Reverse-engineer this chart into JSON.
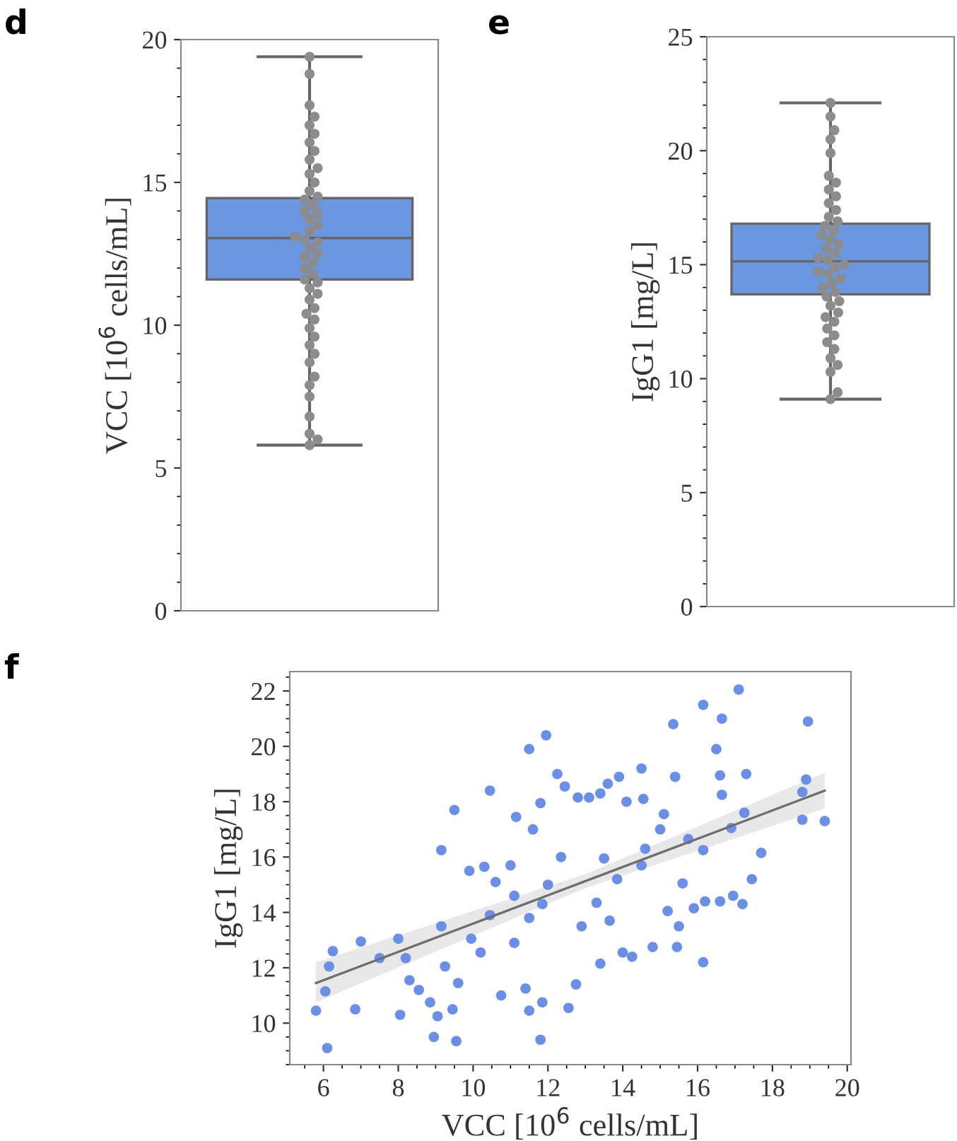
{
  "chart_data": [
    {
      "type": "box",
      "annotations": [
        "d"
      ],
      "ylabel": "VCC [10$^{6}$ cells/mL]",
      "categories": [
        null
      ],
      "ylim": [
        0,
        20
      ],
      "yticks": [
        0,
        5,
        10,
        15,
        20
      ],
      "tick_labels": "y",
      "grid": false,
      "series": [
        {
          "type": "box",
          "color": "#6a97e0",
          "boxes": [
            {
              "low": 5.8,
              "q1": 11.6,
              "median": 13.05,
              "q3": 14.45,
              "high": 19.4
            }
          ]
        },
        {
          "type": "scatter",
          "color": "#8c8c8c",
          "marker": "circle",
          "x": [
            null,
            null,
            null,
            null,
            null,
            null,
            null,
            null,
            null,
            null,
            null,
            null,
            null,
            null,
            null,
            null,
            null,
            null,
            null,
            null,
            null,
            null,
            null,
            null,
            null,
            null,
            null,
            null,
            null,
            null,
            null,
            null,
            null,
            null,
            null,
            null,
            null,
            null,
            null,
            null,
            null,
            null,
            null,
            null,
            null,
            null,
            null,
            null,
            null,
            null
          ],
          "values": [
            5.8,
            6.0,
            6.2,
            6.8,
            7.5,
            7.9,
            8.2,
            8.7,
            9.0,
            9.3,
            9.6,
            9.9,
            10.2,
            10.4,
            10.6,
            10.9,
            11.1,
            11.3,
            11.5,
            11.6,
            11.8,
            12.0,
            12.2,
            12.4,
            12.5,
            12.7,
            12.9,
            13.0,
            13.1,
            13.3,
            13.5,
            13.7,
            13.9,
            14.0,
            14.2,
            14.4,
            14.5,
            14.7,
            15.0,
            15.3,
            15.5,
            15.8,
            16.1,
            16.4,
            16.7,
            17.0,
            17.3,
            17.7,
            18.8,
            19.4
          ]
        }
      ]
    },
    {
      "type": "box",
      "annotations": [
        "e"
      ],
      "ylabel": "IgG1 [mg/L]",
      "categories": [
        null
      ],
      "ylim": [
        0,
        25
      ],
      "yticks": [
        0,
        5,
        10,
        15,
        20,
        25
      ],
      "tick_labels": "y",
      "grid": false,
      "series": [
        {
          "type": "box",
          "color": "#6a97e0",
          "boxes": [
            {
              "low": 9.1,
              "q1": 13.7,
              "median": 15.15,
              "q3": 16.8,
              "high": 22.1
            }
          ]
        },
        {
          "type": "scatter",
          "color": "#8c8c8c",
          "marker": "circle",
          "x": [
            null,
            null,
            null,
            null,
            null,
            null,
            null,
            null,
            null,
            null,
            null,
            null,
            null,
            null,
            null,
            null,
            null,
            null,
            null,
            null,
            null,
            null,
            null,
            null,
            null,
            null,
            null,
            null,
            null,
            null,
            null,
            null,
            null,
            null,
            null,
            null,
            null,
            null,
            null,
            null,
            null,
            null,
            null,
            null,
            null
          ],
          "values": [
            9.1,
            9.4,
            10.3,
            10.6,
            10.9,
            11.3,
            11.6,
            11.9,
            12.2,
            12.5,
            12.7,
            12.9,
            13.2,
            13.4,
            13.6,
            13.8,
            14.0,
            14.2,
            14.4,
            14.6,
            14.7,
            14.9,
            15.0,
            15.2,
            15.3,
            15.5,
            15.7,
            15.9,
            16.1,
            16.3,
            16.5,
            16.7,
            16.9,
            17.1,
            17.4,
            17.7,
            18.0,
            18.3,
            18.6,
            18.9,
            19.9,
            20.5,
            20.9,
            21.5,
            22.1
          ]
        }
      ]
    },
    {
      "type": "scatter",
      "annotations": [
        "f"
      ],
      "xlabel": "VCC [10$^{6}$ cells/mL]",
      "ylabel": "IgG1 [mg/L]",
      "xlim": [
        5.1,
        20.1
      ],
      "xticks": [
        6,
        8,
        10,
        12,
        14,
        16,
        18,
        20
      ],
      "ylim": [
        8.5,
        22.7
      ],
      "yticks": [
        10,
        12,
        14,
        16,
        18,
        20,
        22
      ],
      "grid": false,
      "series": [
        {
          "type": "scatter",
          "color": "#6b8fe6",
          "marker": "circle",
          "x": [
            5.8,
            6.1,
            6.05,
            6.15,
            6.25,
            6.85,
            7.0,
            7.5,
            8.0,
            8.05,
            8.2,
            8.3,
            8.55,
            8.85,
            8.95,
            9.05,
            9.15,
            9.15,
            9.25,
            9.45,
            9.5,
            9.55,
            9.6,
            9.9,
            9.95,
            10.3,
            10.2,
            10.45,
            10.6,
            10.75,
            11.0,
            11.1,
            11.15,
            11.4,
            11.5,
            11.5,
            11.5,
            11.8,
            11.8,
            11.95,
            12.0,
            11.85,
            12.25,
            12.45,
            12.55,
            12.75,
            12.8,
            13.1,
            13.3,
            13.4,
            13.4,
            13.6,
            13.65,
            13.9,
            13.85,
            14.1,
            14.0,
            14.25,
            14.5,
            14.5,
            14.55,
            14.8,
            15.0,
            15.1,
            15.2,
            15.35,
            15.4,
            15.45,
            15.5,
            15.6,
            15.75,
            15.9,
            16.15,
            16.15,
            16.15,
            16.2,
            16.5,
            16.6,
            16.65,
            16.65,
            16.6,
            16.9,
            16.95,
            17.1,
            17.2,
            17.25,
            17.3,
            17.45,
            17.7,
            18.8,
            18.8,
            18.9,
            18.95,
            19.4,
            13.5,
            12.9,
            11.85,
            11.1,
            10.45,
            12.35,
            14.6,
            11.6
          ],
          "values": [
            10.45,
            9.1,
            11.15,
            12.05,
            12.6,
            10.5,
            12.95,
            12.35,
            13.05,
            10.3,
            12.35,
            11.55,
            11.2,
            10.75,
            9.5,
            10.25,
            16.25,
            13.5,
            12.05,
            10.5,
            17.7,
            9.35,
            11.45,
            15.5,
            13.05,
            15.65,
            12.55,
            18.4,
            15.1,
            11.0,
            15.7,
            12.9,
            17.45,
            11.25,
            13.8,
            10.45,
            19.9,
            9.4,
            17.95,
            20.4,
            15.0,
            10.75,
            19.0,
            18.55,
            10.55,
            11.4,
            18.15,
            18.15,
            14.35,
            12.15,
            18.3,
            18.65,
            13.7,
            18.9,
            15.2,
            18.0,
            12.55,
            12.4,
            19.2,
            15.7,
            18.1,
            12.75,
            17.0,
            17.55,
            14.05,
            20.8,
            18.9,
            12.75,
            13.5,
            15.05,
            16.65,
            14.15,
            12.2,
            21.5,
            16.25,
            14.4,
            19.9,
            18.95,
            21.0,
            18.25,
            14.4,
            17.05,
            14.6,
            22.05,
            14.3,
            17.6,
            19.0,
            15.2,
            16.15,
            17.35,
            18.35,
            18.8,
            20.9,
            17.3,
            15.95,
            13.5,
            14.3,
            14.6,
            13.9,
            16.0,
            16.3,
            17.0
          ]
        },
        {
          "type": "line",
          "color": "#6e6e6e",
          "marker": "none",
          "x": [
            5.8,
            13.0,
            19.4
          ],
          "values": [
            11.45,
            15.13,
            18.4
          ],
          "lower": [
            10.75,
            14.88,
            17.75
          ],
          "upper": [
            12.2,
            15.38,
            19.05
          ]
        }
      ]
    }
  ]
}
